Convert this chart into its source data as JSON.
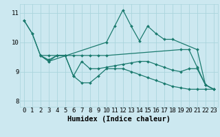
{
  "background_color": "#cce8f0",
  "grid_color": "#aad4dc",
  "line_color": "#1a7a6e",
  "xlim": [
    -0.5,
    23.5
  ],
  "ylim": [
    7.8,
    11.3
  ],
  "yticks": [
    8,
    9,
    10,
    11
  ],
  "xticks": [
    0,
    1,
    2,
    3,
    4,
    5,
    6,
    7,
    8,
    9,
    10,
    11,
    12,
    13,
    14,
    15,
    16,
    17,
    18,
    19,
    20,
    21,
    22,
    23
  ],
  "xlabel": "Humidex (Indice chaleur)",
  "lines": [
    {
      "x": [
        0,
        1,
        2,
        3,
        10,
        11,
        12,
        13,
        14,
        15,
        16,
        17,
        18,
        21,
        22,
        23
      ],
      "y": [
        10.75,
        10.3,
        9.55,
        9.35,
        10.0,
        10.55,
        11.1,
        10.55,
        10.05,
        10.55,
        10.3,
        10.1,
        10.1,
        9.75,
        8.55,
        8.4
      ]
    },
    {
      "x": [
        2,
        3,
        4,
        5,
        6,
        7,
        8,
        9,
        10,
        19,
        20,
        21,
        22,
        23
      ],
      "y": [
        9.55,
        9.55,
        9.55,
        9.55,
        9.55,
        9.55,
        9.55,
        9.55,
        9.55,
        9.75,
        9.75,
        9.15,
        8.55,
        8.4
      ]
    },
    {
      "x": [
        2,
        3,
        4,
        5,
        6,
        7,
        8,
        9,
        10,
        11,
        12,
        13,
        14,
        15,
        16,
        17,
        18,
        19,
        20,
        21,
        22,
        23
      ],
      "y": [
        9.55,
        9.4,
        9.55,
        9.55,
        8.85,
        9.35,
        9.1,
        9.1,
        9.15,
        9.2,
        9.25,
        9.3,
        9.35,
        9.35,
        9.25,
        9.15,
        9.05,
        9.0,
        9.1,
        9.1,
        8.55,
        8.4
      ]
    },
    {
      "x": [
        0,
        1,
        2,
        3,
        4,
        5,
        6,
        7,
        8,
        9,
        10,
        11,
        12,
        13,
        14,
        15,
        16,
        17,
        18,
        19,
        20,
        21,
        22,
        23
      ],
      "y": [
        10.75,
        10.3,
        9.55,
        9.35,
        9.55,
        9.55,
        8.85,
        8.62,
        8.62,
        8.85,
        9.1,
        9.1,
        9.1,
        9.0,
        8.9,
        8.8,
        8.7,
        8.6,
        8.5,
        8.45,
        8.4,
        8.4,
        8.4,
        8.4
      ]
    }
  ],
  "marker": "D",
  "marker_size": 2.0,
  "line_width": 0.9,
  "tick_fontsize": 6.5,
  "xlabel_fontsize": 7.5
}
